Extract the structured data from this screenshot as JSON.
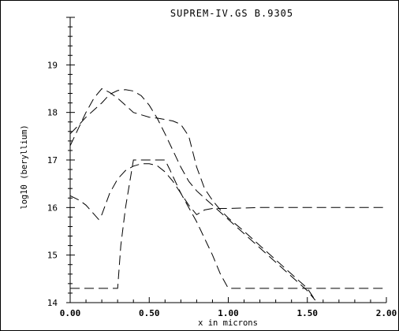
{
  "chart_data": {
    "type": "line",
    "title": "SUPREM-IV.GS B.9305",
    "xlabel": "x in microns",
    "ylabel": "log10 (beryllium)",
    "xlim": [
      0,
      2
    ],
    "ylim": [
      14,
      20
    ],
    "x_ticks": [
      "0.00",
      "0.50",
      "1.00",
      "1.50",
      "2.00"
    ],
    "y_ticks": [
      "14",
      "15",
      "16",
      "17",
      "18",
      "19"
    ],
    "grid": false,
    "series": [
      {
        "style": "dashed",
        "x": [
          0,
          0.05,
          0.1,
          0.15,
          0.2,
          0.25,
          0.3,
          0.35,
          0.4,
          0.45,
          0.5,
          0.55,
          0.6,
          0.65,
          0.7,
          0.75,
          0.8,
          0.85,
          0.9,
          0.95,
          1.0,
          1.05,
          1.1,
          1.2,
          1.3,
          1.4,
          1.5,
          1.55
        ],
        "y": [
          17.55,
          17.72,
          17.9,
          18.05,
          18.2,
          18.38,
          18.46,
          18.48,
          18.45,
          18.35,
          18.15,
          17.88,
          17.55,
          17.2,
          16.85,
          16.55,
          16.35,
          16.2,
          16.05,
          15.9,
          15.75,
          15.6,
          15.45,
          15.15,
          14.85,
          14.55,
          14.25,
          14.05
        ]
      },
      {
        "style": "dashed",
        "x": [
          0,
          0.05,
          0.1,
          0.15,
          0.2,
          0.25,
          0.3,
          0.35,
          0.4,
          0.45,
          0.5,
          0.55,
          0.6,
          0.65,
          0.7,
          0.75,
          0.8,
          0.85,
          0.9,
          0.95,
          1.0,
          1.1,
          1.2,
          1.3,
          1.4,
          1.5,
          1.55
        ],
        "y": [
          17.3,
          17.65,
          18.0,
          18.3,
          18.5,
          18.42,
          18.3,
          18.15,
          18.0,
          17.95,
          17.9,
          17.88,
          17.85,
          17.82,
          17.75,
          17.5,
          16.85,
          16.4,
          16.15,
          15.95,
          15.78,
          15.5,
          15.2,
          14.9,
          14.6,
          14.3,
          14.05
        ]
      },
      {
        "style": "dashed",
        "x": [
          0,
          0.03,
          0.06,
          0.1,
          0.14,
          0.18,
          0.2,
          0.25,
          0.3,
          0.35,
          0.4,
          0.45,
          0.5,
          0.55,
          0.6,
          0.65,
          0.7,
          0.75,
          0.8,
          0.85,
          0.9,
          1.0,
          1.2,
          1.5,
          2.0
        ],
        "y": [
          16.25,
          16.2,
          16.15,
          16.05,
          15.9,
          15.75,
          15.85,
          16.3,
          16.6,
          16.78,
          16.87,
          16.92,
          16.92,
          16.88,
          16.75,
          16.55,
          16.3,
          16.05,
          15.85,
          15.95,
          15.98,
          15.98,
          16.0,
          16.0,
          16.0
        ]
      },
      {
        "style": "dashed",
        "x": [
          0,
          0.05,
          0.1,
          0.2,
          0.3,
          0.32,
          0.35,
          0.4,
          0.5,
          0.6,
          0.63,
          0.7,
          0.8,
          0.9,
          0.95,
          1.0,
          1.1,
          1.5,
          2.0
        ],
        "y": [
          14.3,
          14.3,
          14.3,
          14.3,
          14.3,
          15.2,
          16.0,
          17.0,
          17.0,
          17.0,
          16.8,
          16.3,
          15.7,
          15.0,
          14.6,
          14.3,
          14.3,
          14.3,
          14.3
        ]
      }
    ]
  }
}
